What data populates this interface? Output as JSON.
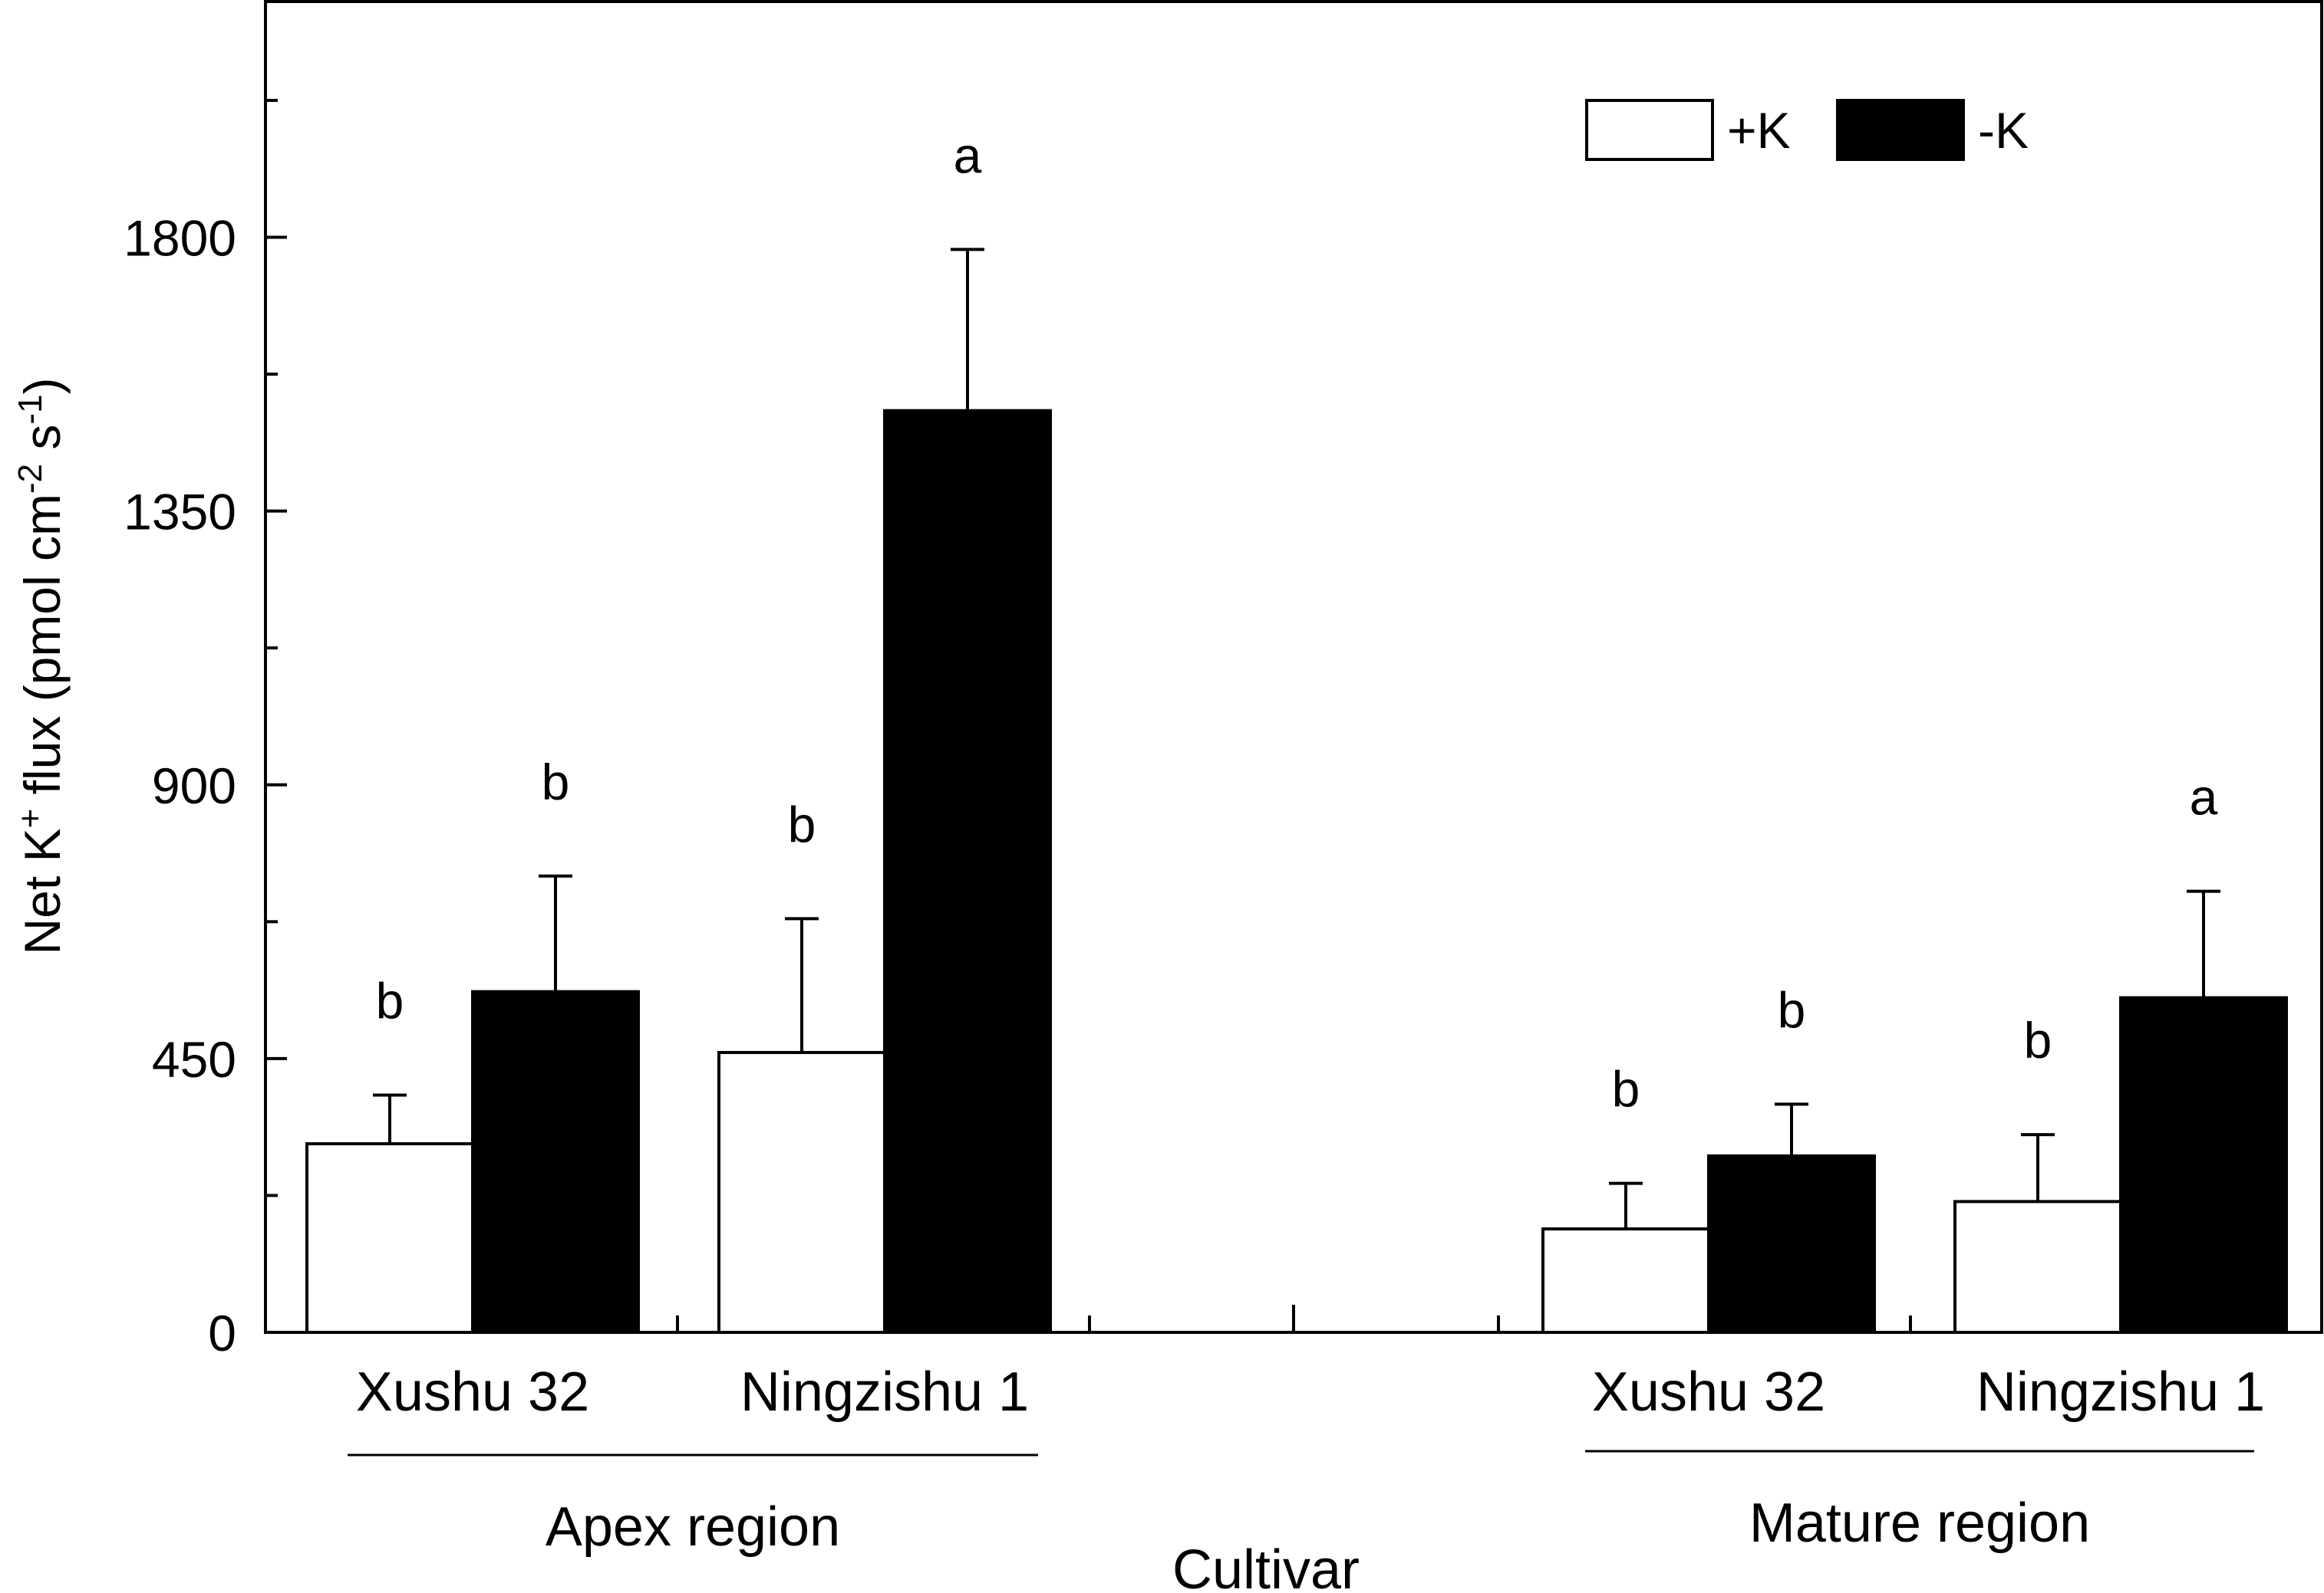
{
  "chart_data": {
    "type": "bar",
    "ylabel_parts": [
      "Net K",
      "+",
      " flux (pmol cm",
      "-2",
      " s",
      "-1",
      ")"
    ],
    "xlabel": "Cultivar",
    "ylim": [
      0,
      2190
    ],
    "yticks": [
      0,
      450,
      900,
      1350,
      1800
    ],
    "ytick_labels": [
      "0",
      "450",
      "900",
      "1350",
      "1800"
    ],
    "series": [
      {
        "name": "+K",
        "color": "#ffffff"
      },
      {
        "name": "-K",
        "color": "#000000"
      }
    ],
    "groups": [
      {
        "region": "Apex region",
        "cultivar": "Xushu 32",
        "slot": 0,
        "bars": [
          {
            "series": "+K",
            "value": 310,
            "error": 80,
            "letter": "b"
          },
          {
            "series": "-K",
            "value": 560,
            "error": 190,
            "letter": "b"
          }
        ]
      },
      {
        "region": "Apex region",
        "cultivar": "Ningzishu 1",
        "slot": 1,
        "bars": [
          {
            "series": "+K",
            "value": 460,
            "error": 220,
            "letter": "b"
          },
          {
            "series": "-K",
            "value": 1515,
            "error": 265,
            "letter": "a"
          }
        ]
      },
      {
        "region": "Mature region",
        "cultivar": "Xushu 32",
        "slot": 3,
        "bars": [
          {
            "series": "+K",
            "value": 170,
            "error": 75,
            "letter": "b"
          },
          {
            "series": "-K",
            "value": 290,
            "error": 85,
            "letter": "b"
          }
        ]
      },
      {
        "region": "Mature region",
        "cultivar": "Ningzishu 1",
        "slot": 4,
        "bars": [
          {
            "series": "+K",
            "value": 215,
            "error": 110,
            "letter": "b"
          },
          {
            "series": "-K",
            "value": 550,
            "error": 175,
            "letter": "a"
          }
        ]
      }
    ],
    "regions": [
      "Apex region",
      "Mature region"
    ],
    "legend_position": "top-right",
    "grid": false
  }
}
